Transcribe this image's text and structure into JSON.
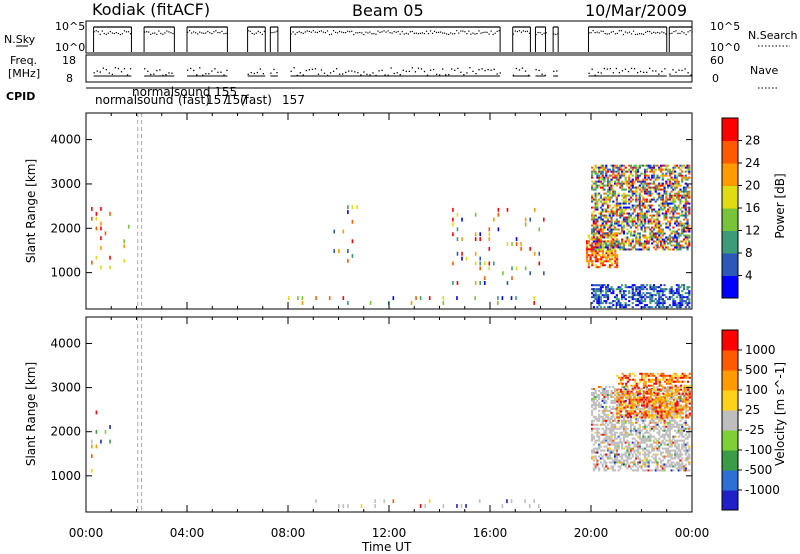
{
  "header": {
    "radar": "Kodiak (fitACF)",
    "beam": "Beam 05",
    "date": "10/Mar/2009"
  },
  "panel_labels": {
    "nsky": "N.Sky",
    "nsky_ticks": [
      "10^5",
      "10^0"
    ],
    "nsearch": "N.Search",
    "nsearch_ticks": [
      "10^5",
      "10^0"
    ],
    "freq": "Freq.",
    "freq_unit": "[MHz]",
    "freq_ticks": [
      "18",
      "8"
    ],
    "nave": "Nave",
    "nave_ticks": [
      "60",
      "0"
    ],
    "cpid": "CPID",
    "cpid_annotations": [
      "normalsound",
      "normalsound 155",
      "(fast)",
      "157",
      "157",
      "(fast)",
      "157"
    ]
  },
  "colors": {
    "power": [
      "#0000ff",
      "#2d57b8",
      "#3c9c7a",
      "#79c33a",
      "#e0dc12",
      "#ff9a00",
      "#ff5a00",
      "#ff0000"
    ],
    "velocity": [
      "#2020c8",
      "#2d6fd4",
      "#3a9c46",
      "#7fcf37",
      "#bebebe",
      "#ffd21a",
      "#ff9a00",
      "#ff5a00",
      "#ff0000"
    ]
  },
  "chart_data": [
    {
      "type": "heatmap",
      "title": "",
      "xlabel": "Time UT",
      "ylabel": "Slant Range [km]",
      "colorbar_label": "Power [dB]",
      "colorbar_ticks": [
        "28",
        "24",
        "20",
        "16",
        "12",
        "8",
        "4"
      ],
      "xlim_hours": [
        0,
        24
      ],
      "ylim": [
        180,
        4600
      ],
      "x_ticks": [
        "00:00",
        "04:00",
        "08:00",
        "12:00",
        "16:00",
        "20:00",
        "00:00"
      ],
      "y_ticks": [
        1000,
        2000,
        3000,
        4000
      ],
      "features": [
        {
          "t_start": 0.2,
          "t_end": 1.0,
          "r_start": 1050,
          "r_end": 2400,
          "level": "high"
        },
        {
          "t_start": 1.3,
          "t_end": 1.9,
          "r_start": 1200,
          "r_end": 2100,
          "level": "mid"
        },
        {
          "t_start": 8.0,
          "t_end": 18.2,
          "r_start": 250,
          "r_end": 400,
          "level": "mixed"
        },
        {
          "t_start": 9.8,
          "t_end": 10.8,
          "r_start": 1200,
          "r_end": 2500,
          "level": "mixed"
        },
        {
          "t_start": 14.5,
          "t_end": 18.2,
          "r_start": 700,
          "r_end": 2400,
          "level": "mixed"
        },
        {
          "t_start": 19.8,
          "t_end": 21.0,
          "r_start": 1100,
          "r_end": 1900,
          "level": "high"
        },
        {
          "t_start": 20.0,
          "t_end": 23.9,
          "r_start": 1500,
          "r_end": 3400,
          "level": "mixed"
        },
        {
          "t_start": 20.0,
          "t_end": 23.9,
          "r_start": 200,
          "r_end": 700,
          "level": "low"
        }
      ]
    },
    {
      "type": "heatmap",
      "title": "",
      "xlabel": "Time UT",
      "ylabel": "Slant Range [km]",
      "colorbar_label": "Velocity [m s^-1]",
      "colorbar_ticks": [
        "1000",
        "500",
        "100",
        "25",
        "-25",
        "-100",
        "-500",
        "-1000"
      ],
      "xlim_hours": [
        0,
        24
      ],
      "ylim": [
        180,
        4600
      ],
      "x_ticks": [
        "00:00",
        "04:00",
        "08:00",
        "12:00",
        "16:00",
        "20:00",
        "00:00"
      ],
      "y_ticks": [
        1000,
        2000,
        3000,
        4000
      ],
      "features": [
        {
          "t_start": 0.2,
          "t_end": 1.0,
          "r_start": 1050,
          "r_end": 2400,
          "level": "mixed"
        },
        {
          "t_start": 8.0,
          "t_end": 18.2,
          "r_start": 250,
          "r_end": 400,
          "level": "near-zero"
        },
        {
          "t_start": 20.0,
          "t_end": 23.9,
          "r_start": 1100,
          "r_end": 3000,
          "level": "near-zero"
        },
        {
          "t_start": 21.0,
          "t_end": 23.9,
          "r_start": 2300,
          "r_end": 3300,
          "level": "away"
        }
      ]
    }
  ]
}
